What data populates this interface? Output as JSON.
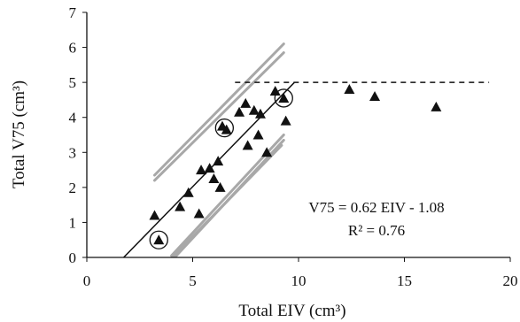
{
  "chart_data": {
    "type": "scatter",
    "xlabel": "Total EIV (cm³)",
    "ylabel": "Total V75 (cm³)",
    "xlim": [
      0,
      20
    ],
    "ylim": [
      0,
      7
    ],
    "xticks": [
      0,
      5,
      10,
      15,
      20
    ],
    "yticks": [
      0,
      1,
      2,
      3,
      4,
      5,
      6,
      7
    ],
    "grid": false,
    "points": [
      {
        "x": 3.2,
        "y": 1.2
      },
      {
        "x": 3.4,
        "y": 0.5
      },
      {
        "x": 4.4,
        "y": 1.45
      },
      {
        "x": 4.8,
        "y": 1.85
      },
      {
        "x": 5.3,
        "y": 1.25
      },
      {
        "x": 5.4,
        "y": 2.5
      },
      {
        "x": 5.8,
        "y": 2.55
      },
      {
        "x": 6.0,
        "y": 2.25
      },
      {
        "x": 6.2,
        "y": 2.75
      },
      {
        "x": 6.3,
        "y": 2.0
      },
      {
        "x": 6.4,
        "y": 3.75
      },
      {
        "x": 6.6,
        "y": 3.65
      },
      {
        "x": 7.2,
        "y": 4.15
      },
      {
        "x": 7.5,
        "y": 4.4
      },
      {
        "x": 7.6,
        "y": 3.2
      },
      {
        "x": 7.9,
        "y": 4.2
      },
      {
        "x": 8.1,
        "y": 3.5
      },
      {
        "x": 8.2,
        "y": 4.1
      },
      {
        "x": 8.5,
        "y": 3.0
      },
      {
        "x": 8.9,
        "y": 4.75
      },
      {
        "x": 9.3,
        "y": 4.55
      },
      {
        "x": 9.4,
        "y": 3.9
      },
      {
        "x": 12.4,
        "y": 4.8
      },
      {
        "x": 13.6,
        "y": 4.6
      },
      {
        "x": 16.5,
        "y": 4.3
      }
    ],
    "circled_points": [
      {
        "x": 3.4,
        "y": 0.5
      },
      {
        "x": 6.5,
        "y": 3.7
      },
      {
        "x": 9.3,
        "y": 4.55
      }
    ],
    "regression_line": {
      "slope": 0.62,
      "intercept": -1.08,
      "x_range": [
        1.74,
        9.8
      ]
    },
    "plateau_line": {
      "y": 5.0,
      "x_range": [
        7.0,
        19.0
      ],
      "style": "dashed"
    },
    "upper_band_lines": [
      {
        "x1": 3.2,
        "y1": 2.35,
        "x2": 9.3,
        "y2": 6.1
      },
      {
        "x1": 3.2,
        "y1": 2.2,
        "x2": 9.3,
        "y2": 5.85
      }
    ],
    "lower_band_lines": [
      {
        "x1": 4.0,
        "y1": 0.05,
        "x2": 9.3,
        "y2": 3.5
      },
      {
        "x1": 4.0,
        "y1": -0.1,
        "x2": 9.3,
        "y2": 3.35
      },
      {
        "x1": 3.8,
        "y1": -0.15,
        "x2": 9.2,
        "y2": 3.2
      }
    ],
    "annotations": {
      "equation": "V75 = 0.62 EIV - 1.08",
      "r_squared": "R² = 0.76"
    },
    "colors": {
      "points": "#111111",
      "regression": "#111111",
      "bands": "#a8a8a8",
      "axis": "#111111"
    }
  }
}
